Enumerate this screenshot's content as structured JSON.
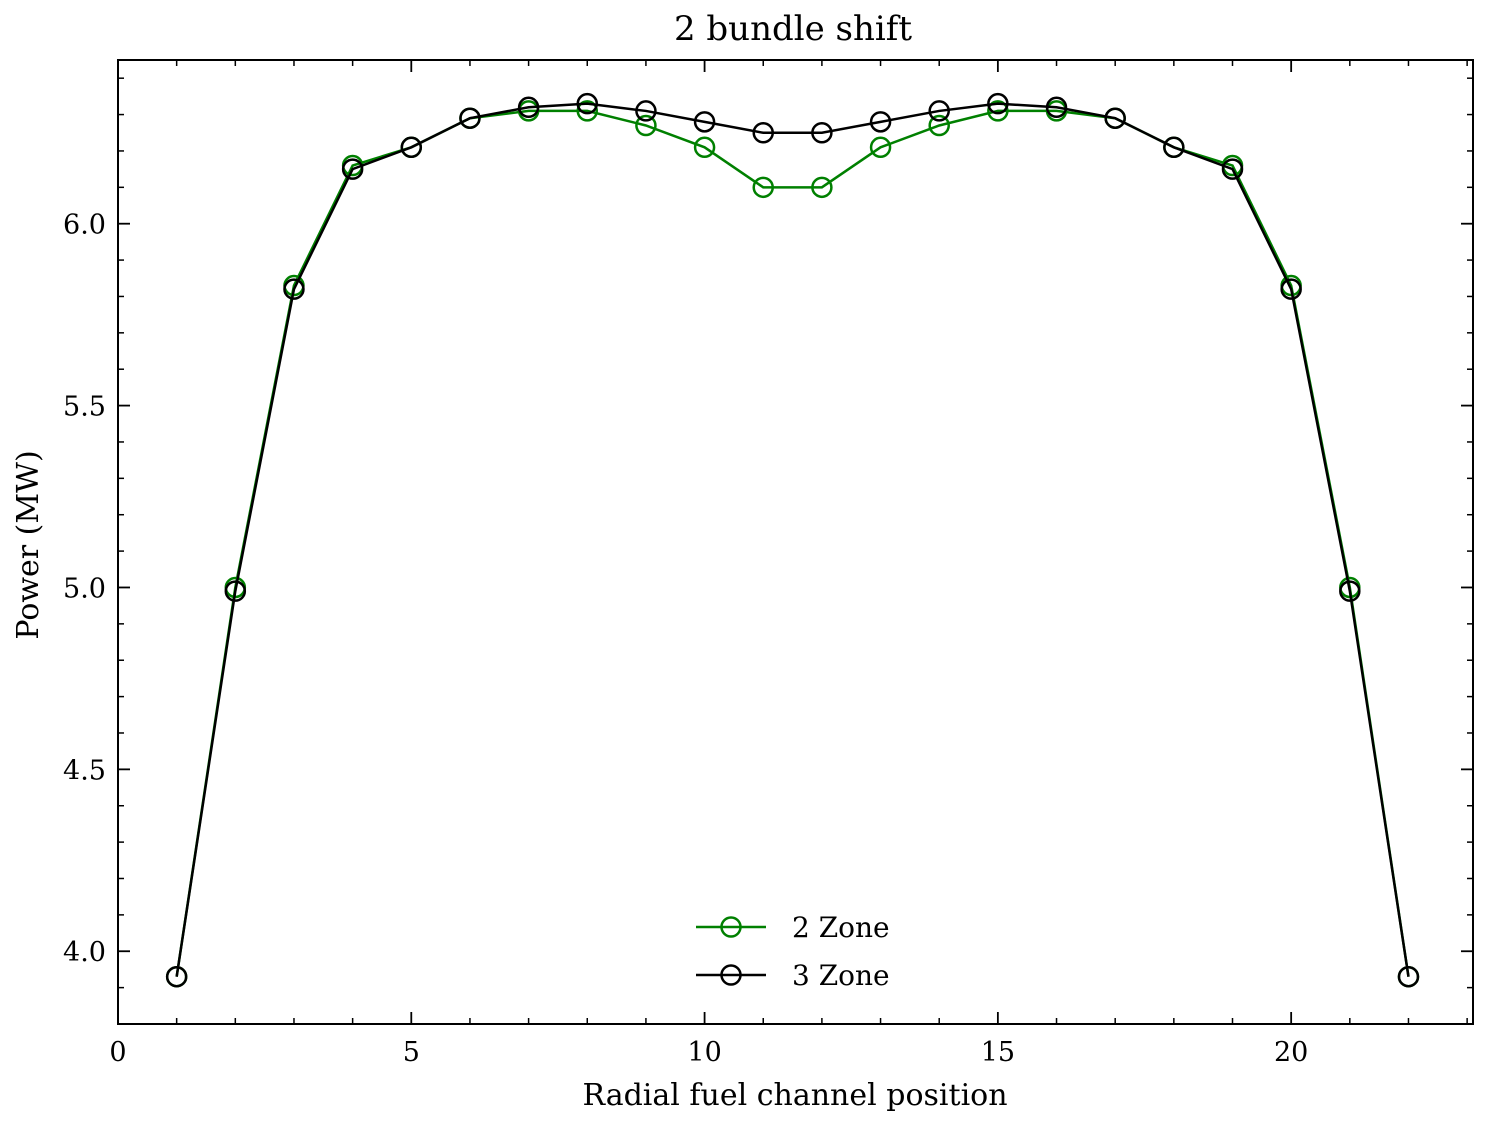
{
  "chart_data": {
    "type": "line",
    "title": "2 bundle shift",
    "xlabel": "Radial fuel channel position",
    "ylabel": "Power (MW)",
    "xlim": [
      0,
      23.1
    ],
    "ylim": [
      3.8,
      6.45
    ],
    "xticks": [
      0,
      5,
      10,
      15,
      20
    ],
    "xtick_labels": [
      "0",
      "5",
      "10",
      "15",
      "20"
    ],
    "yticks": [
      4.0,
      4.5,
      5.0,
      5.5,
      6.0
    ],
    "ytick_labels": [
      "4.0",
      "4.5",
      "5.0",
      "5.5",
      "6.0"
    ],
    "grid": false,
    "legend_position": "bottom-center",
    "x": [
      1,
      2,
      3,
      4,
      5,
      6,
      7,
      8,
      9,
      10,
      11,
      12,
      13,
      14,
      15,
      16,
      17,
      18,
      19,
      20,
      21,
      22
    ],
    "series": [
      {
        "name": "2 Zone",
        "color": "#008000",
        "marker": "open-circle",
        "values": [
          3.93,
          5.0,
          5.83,
          6.16,
          6.21,
          6.29,
          6.31,
          6.31,
          6.27,
          6.21,
          6.1,
          6.1,
          6.21,
          6.27,
          6.31,
          6.31,
          6.29,
          6.21,
          6.16,
          5.83,
          5.0,
          3.93
        ]
      },
      {
        "name": "3 Zone",
        "color": "#000000",
        "marker": "open-circle",
        "values": [
          3.93,
          4.99,
          5.82,
          6.15,
          6.21,
          6.29,
          6.32,
          6.33,
          6.31,
          6.28,
          6.25,
          6.25,
          6.28,
          6.31,
          6.33,
          6.32,
          6.29,
          6.21,
          6.15,
          5.82,
          4.99,
          3.93
        ]
      }
    ]
  }
}
